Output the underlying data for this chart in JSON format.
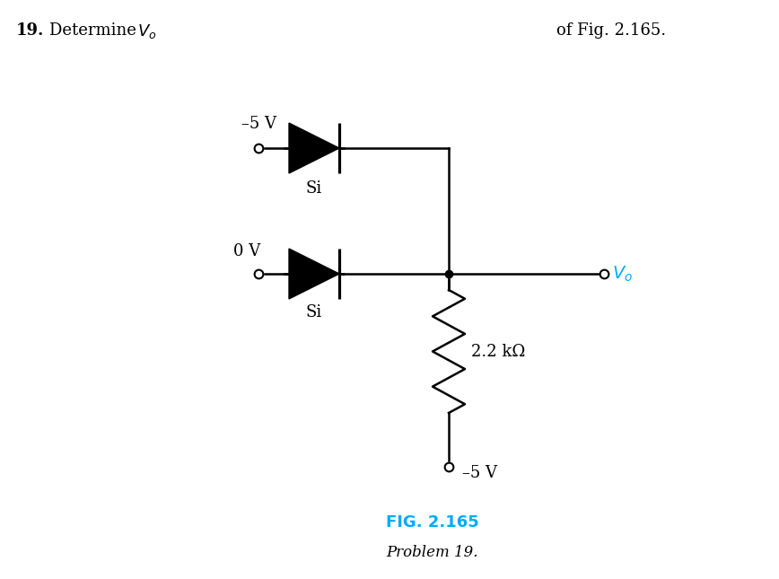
{
  "title_left": "19.",
  "title_text": "Determine ",
  "title_vo": "V",
  "title_vo_sub": "o",
  "title_right": "of Fig. 2.165.",
  "fig_label": "FIG. 2.165",
  "fig_sublabel": "Problem 19.",
  "label_n5v_top": "–5 V",
  "label_0v": "0 V",
  "label_si_top": "Si",
  "label_si_bot": "Si",
  "label_resistor": "2.2 kΩ",
  "label_n5v_bot": "–5 V",
  "label_vo": "V",
  "label_vo_sub": "o",
  "node_color": "#000000",
  "wire_color": "#000000",
  "cyan_color": "#00AAFF",
  "fig_label_color": "#00AAFF",
  "background": "#FFFFFF"
}
